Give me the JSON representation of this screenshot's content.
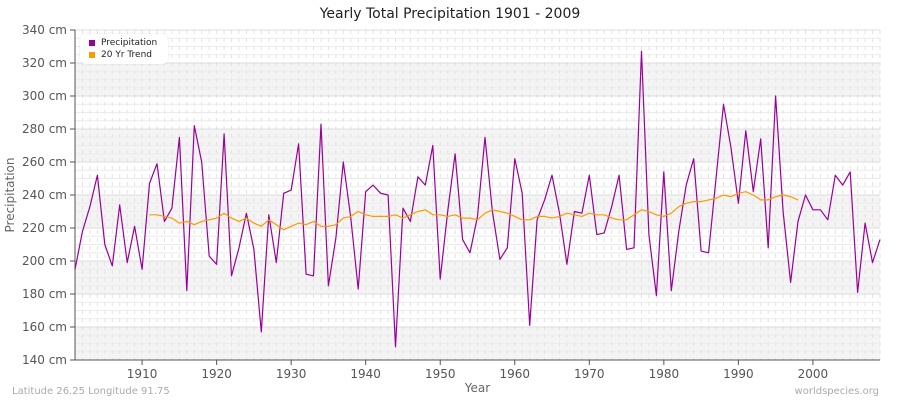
{
  "title": "Yearly Total Precipitation 1901 - 2009",
  "footer": {
    "left": "Latitude 26.25 Longitude 91.75",
    "right": "worldspecies.org"
  },
  "legend": [
    {
      "label": "Precipitation",
      "color": "#990099"
    },
    {
      "label": "20 Yr Trend",
      "color": "#ff9900"
    }
  ],
  "colors": {
    "precip": "#990099",
    "trend": "#ff9900"
  },
  "chart_data": {
    "type": "line",
    "title": "Yearly Total Precipitation 1901 - 2009",
    "xlabel": "Year",
    "ylabel": "Precipitation",
    "ylim": [
      140,
      340
    ],
    "xlim": [
      1901,
      2009
    ],
    "y_ticks": [
      "140 cm",
      "160 cm",
      "180 cm",
      "200 cm",
      "220 cm",
      "240 cm",
      "260 cm",
      "280 cm",
      "300 cm",
      "320 cm",
      "340 cm"
    ],
    "x_ticks": [
      "1910",
      "1920",
      "1930",
      "1940",
      "1950",
      "1960",
      "1970",
      "1980",
      "1990",
      "2000"
    ],
    "grid": true,
    "legend_position": "top-left",
    "series": [
      {
        "name": "Precipitation",
        "x_start": 1901,
        "values": [
          195,
          218,
          233,
          252,
          210,
          197,
          234,
          199,
          221,
          195,
          247,
          259,
          224,
          232,
          275,
          182,
          282,
          260,
          203,
          198,
          277,
          191,
          208,
          229,
          207,
          157,
          228,
          199,
          241,
          243,
          271,
          192,
          191,
          283,
          185,
          214,
          260,
          226,
          183,
          242,
          246,
          241,
          240,
          148,
          232,
          224,
          251,
          246,
          270,
          189,
          230,
          265,
          213,
          205,
          227,
          275,
          230,
          201,
          208,
          262,
          241,
          161,
          225,
          237,
          252,
          229,
          198,
          230,
          229,
          252,
          216,
          217,
          233,
          252,
          207,
          208,
          327,
          216,
          179,
          254,
          182,
          218,
          246,
          262,
          206,
          205,
          250,
          295,
          269,
          235,
          279,
          242,
          274,
          208,
          300,
          230,
          187,
          224,
          240,
          231,
          231,
          225,
          252,
          246,
          254,
          181,
          223,
          199,
          213
        ]
      },
      {
        "name": "20 Yr Trend",
        "x_start": 1911,
        "values": [
          228,
          228,
          227,
          226,
          223,
          224,
          222,
          224,
          225,
          226,
          229,
          226,
          224,
          226,
          223,
          221,
          225,
          222,
          219,
          221,
          223,
          222,
          224,
          221,
          221,
          222,
          226,
          227,
          230,
          228,
          227,
          227,
          227,
          228,
          226,
          228,
          230,
          231,
          228,
          228,
          227,
          228,
          226,
          226,
          225,
          229,
          231,
          230,
          229,
          227,
          225,
          225,
          227,
          227,
          226,
          227,
          229,
          228,
          227,
          229,
          228,
          228,
          226,
          225,
          225,
          228,
          231,
          230,
          228,
          227,
          229,
          233,
          235,
          236,
          236,
          237,
          238,
          240,
          239,
          241,
          242,
          240,
          237,
          237,
          239,
          240,
          239,
          237
        ]
      }
    ]
  }
}
